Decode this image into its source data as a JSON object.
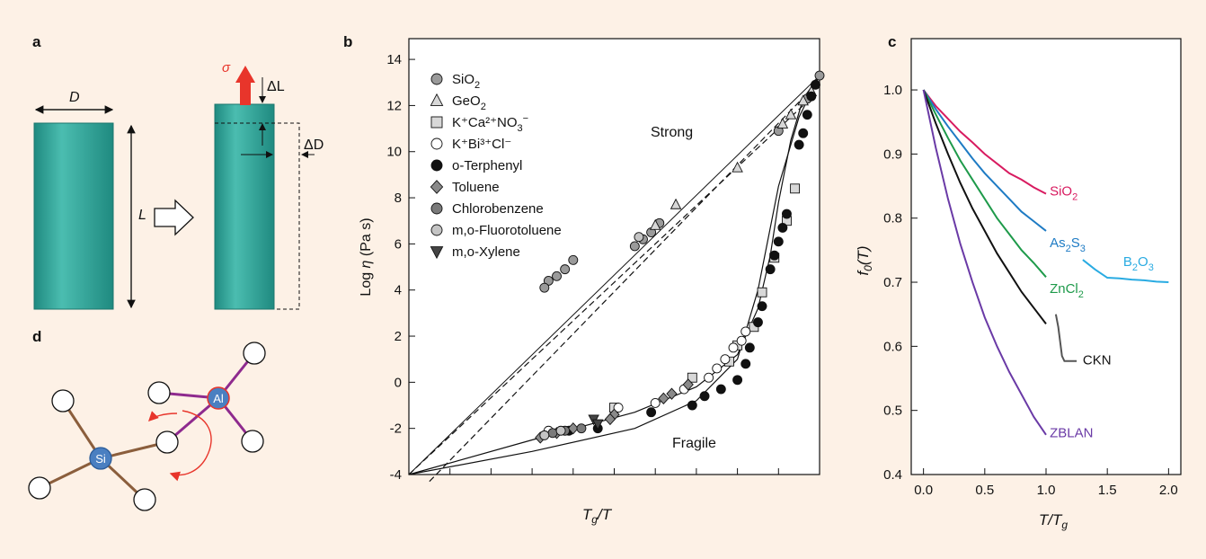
{
  "panels": {
    "a": {
      "label": "a",
      "dim_d": "D",
      "dim_l": "L",
      "stress": "σ",
      "delta_l": "ΔL",
      "delta_d": "ΔD",
      "colors": {
        "rod": "#2a9d93",
        "stress_arrow": "#e8352b"
      }
    },
    "d": {
      "label": "d",
      "atom_si": "Si",
      "atom_al": "Al",
      "colors": {
        "si_bond": "#8b5e3c",
        "al_bond": "#8e2a8e",
        "atom": "#4a7fc1",
        "arrow": "#e8352b"
      }
    }
  },
  "chart_data": [
    {
      "panel": "b",
      "type": "scatter",
      "xlabel_main": "T",
      "xlabel_sub": "g",
      "xlabel_tail": "/T",
      "ylabel_main": "Log ",
      "ylabel_eta": "η",
      "ylabel_tail": " (Pa s)",
      "xlim": [
        0,
        1
      ],
      "ylim": [
        -4,
        14
      ],
      "yticks": [
        "-4",
        "-2",
        "0",
        "2",
        "4",
        "6",
        "8",
        "10",
        "12",
        "14"
      ],
      "annotations": {
        "strong": "Strong",
        "fragile": "Fragile"
      },
      "legend": [
        {
          "marker": "circle",
          "fill": "#9a9a9a",
          "text": "SiO",
          "sub": "2",
          "sup": ""
        },
        {
          "marker": "triangle",
          "fill": "#d8d8d8",
          "text": "GeO",
          "sub": "2",
          "sup": ""
        },
        {
          "marker": "square",
          "fill": "#d8d8d8",
          "text": "K⁺Ca²⁺NO",
          "sub": "3",
          "sup": "−"
        },
        {
          "marker": "circle",
          "fill": "#ffffff",
          "text": "K⁺Bi³⁺Cl⁻",
          "sub": "",
          "sup": ""
        },
        {
          "marker": "circle",
          "fill": "#111111",
          "text": "o-Terphenyl",
          "sub": "",
          "sup": ""
        },
        {
          "marker": "diamond",
          "fill": "#8a8a8a",
          "text": "Toluene",
          "sub": "",
          "sup": ""
        },
        {
          "marker": "circle",
          "fill": "#7a7a7a",
          "text": "Chlorobenzene",
          "sub": "",
          "sup": ""
        },
        {
          "marker": "circle",
          "fill": "#c4c4c4",
          "text": "m,o-Fluorotoluene",
          "sub": "",
          "sup": ""
        },
        {
          "marker": "triangle-down",
          "fill": "#444444",
          "text": "m,o-Xylene",
          "sub": "",
          "sup": ""
        }
      ],
      "lines": {
        "arrhenius": [
          [
            0,
            -4
          ],
          [
            1,
            13.3
          ]
        ],
        "strong_dashed_1": [
          [
            0.05,
            -4.3
          ],
          [
            0.98,
            12.7
          ]
        ],
        "strong_dashed_2": [
          [
            0,
            -4
          ],
          [
            0.96,
            12.0
          ]
        ],
        "fragile": [
          [
            0,
            -4
          ],
          [
            0.3,
            -2.5
          ],
          [
            0.55,
            -1.3
          ],
          [
            0.7,
            -0.2
          ],
          [
            0.8,
            1.2
          ],
          [
            0.85,
            3.2
          ],
          [
            0.88,
            5.5
          ],
          [
            0.9,
            7.8
          ],
          [
            0.93,
            10.5
          ],
          [
            0.96,
            12.3
          ],
          [
            1.0,
            13.3
          ]
        ],
        "fragile_lower": [
          [
            0,
            -4
          ],
          [
            0.3,
            -3.0
          ],
          [
            0.55,
            -2.0
          ],
          [
            0.7,
            -0.8
          ],
          [
            0.8,
            1.0
          ],
          [
            0.85,
            4.0
          ],
          [
            0.9,
            8.5
          ],
          [
            0.95,
            11.5
          ],
          [
            1.0,
            13.3
          ]
        ]
      },
      "points": [
        {
          "x": 1.0,
          "y": 13.3,
          "m": "circle",
          "f": "#9a9a9a"
        },
        {
          "x": 0.97,
          "y": 12.3,
          "m": "circle",
          "f": "#9a9a9a"
        },
        {
          "x": 0.9,
          "y": 10.9,
          "m": "circle",
          "f": "#9a9a9a"
        },
        {
          "x": 0.61,
          "y": 6.9,
          "m": "circle",
          "f": "#9a9a9a"
        },
        {
          "x": 0.59,
          "y": 6.5,
          "m": "circle",
          "f": "#9a9a9a"
        },
        {
          "x": 0.57,
          "y": 6.2,
          "m": "circle",
          "f": "#9a9a9a"
        },
        {
          "x": 0.55,
          "y": 5.9,
          "m": "circle",
          "f": "#9a9a9a"
        },
        {
          "x": 0.56,
          "y": 6.3,
          "m": "circle",
          "f": "#c4c4c4"
        },
        {
          "x": 0.4,
          "y": 5.3,
          "m": "circle",
          "f": "#9a9a9a"
        },
        {
          "x": 0.38,
          "y": 4.9,
          "m": "circle",
          "f": "#9a9a9a"
        },
        {
          "x": 0.36,
          "y": 4.6,
          "m": "circle",
          "f": "#9a9a9a"
        },
        {
          "x": 0.34,
          "y": 4.4,
          "m": "circle",
          "f": "#9a9a9a"
        },
        {
          "x": 0.33,
          "y": 4.1,
          "m": "circle",
          "f": "#9a9a9a"
        },
        {
          "x": 0.98,
          "y": 12.6,
          "m": "triangle",
          "f": "#d8d8d8"
        },
        {
          "x": 0.96,
          "y": 12.2,
          "m": "triangle",
          "f": "#d8d8d8"
        },
        {
          "x": 0.93,
          "y": 11.6,
          "m": "triangle",
          "f": "#d8d8d8"
        },
        {
          "x": 0.91,
          "y": 11.2,
          "m": "triangle",
          "f": "#d8d8d8"
        },
        {
          "x": 0.8,
          "y": 9.3,
          "m": "triangle",
          "f": "#d8d8d8"
        },
        {
          "x": 0.65,
          "y": 7.7,
          "m": "triangle",
          "f": "#d8d8d8"
        },
        {
          "x": 0.6,
          "y": 6.8,
          "m": "triangle",
          "f": "#d8d8d8"
        },
        {
          "x": 0.94,
          "y": 8.4,
          "m": "square",
          "f": "#d8d8d8"
        },
        {
          "x": 0.92,
          "y": 7.0,
          "m": "square",
          "f": "#d8d8d8"
        },
        {
          "x": 0.89,
          "y": 5.4,
          "m": "square",
          "f": "#d8d8d8"
        },
        {
          "x": 0.86,
          "y": 3.9,
          "m": "square",
          "f": "#d8d8d8"
        },
        {
          "x": 0.84,
          "y": 2.4,
          "m": "square",
          "f": "#d8d8d8"
        },
        {
          "x": 0.8,
          "y": 1.6,
          "m": "square",
          "f": "#d8d8d8"
        },
        {
          "x": 0.78,
          "y": 0.9,
          "m": "square",
          "f": "#d8d8d8"
        },
        {
          "x": 0.69,
          "y": 0.2,
          "m": "square",
          "f": "#d8d8d8"
        },
        {
          "x": 0.5,
          "y": -1.1,
          "m": "square",
          "f": "#d8d8d8"
        },
        {
          "x": 0.82,
          "y": 2.2,
          "m": "circle",
          "f": "#ffffff"
        },
        {
          "x": 0.81,
          "y": 1.8,
          "m": "circle",
          "f": "#ffffff"
        },
        {
          "x": 0.79,
          "y": 1.5,
          "m": "circle",
          "f": "#ffffff"
        },
        {
          "x": 0.77,
          "y": 1.0,
          "m": "circle",
          "f": "#ffffff"
        },
        {
          "x": 0.75,
          "y": 0.6,
          "m": "circle",
          "f": "#ffffff"
        },
        {
          "x": 0.73,
          "y": 0.2,
          "m": "circle",
          "f": "#ffffff"
        },
        {
          "x": 0.67,
          "y": -0.3,
          "m": "circle",
          "f": "#ffffff"
        },
        {
          "x": 0.6,
          "y": -0.9,
          "m": "circle",
          "f": "#ffffff"
        },
        {
          "x": 0.51,
          "y": -1.1,
          "m": "circle",
          "f": "#ffffff"
        },
        {
          "x": 0.34,
          "y": -2.1,
          "m": "circle",
          "f": "#ffffff"
        },
        {
          "x": 0.99,
          "y": 12.9,
          "m": "circle",
          "f": "#111111"
        },
        {
          "x": 0.98,
          "y": 12.4,
          "m": "circle",
          "f": "#111111"
        },
        {
          "x": 0.97,
          "y": 11.6,
          "m": "circle",
          "f": "#111111"
        },
        {
          "x": 0.96,
          "y": 10.8,
          "m": "circle",
          "f": "#111111"
        },
        {
          "x": 0.95,
          "y": 10.3,
          "m": "circle",
          "f": "#111111"
        },
        {
          "x": 0.92,
          "y": 7.3,
          "m": "circle",
          "f": "#111111"
        },
        {
          "x": 0.91,
          "y": 6.7,
          "m": "circle",
          "f": "#111111"
        },
        {
          "x": 0.9,
          "y": 6.1,
          "m": "circle",
          "f": "#111111"
        },
        {
          "x": 0.89,
          "y": 5.5,
          "m": "circle",
          "f": "#111111"
        },
        {
          "x": 0.88,
          "y": 4.9,
          "m": "circle",
          "f": "#111111"
        },
        {
          "x": 0.86,
          "y": 3.3,
          "m": "circle",
          "f": "#111111"
        },
        {
          "x": 0.85,
          "y": 2.6,
          "m": "circle",
          "f": "#111111"
        },
        {
          "x": 0.83,
          "y": 1.5,
          "m": "circle",
          "f": "#111111"
        },
        {
          "x": 0.82,
          "y": 0.8,
          "m": "circle",
          "f": "#111111"
        },
        {
          "x": 0.8,
          "y": 0.1,
          "m": "circle",
          "f": "#111111"
        },
        {
          "x": 0.76,
          "y": -0.3,
          "m": "circle",
          "f": "#111111"
        },
        {
          "x": 0.72,
          "y": -0.6,
          "m": "circle",
          "f": "#111111"
        },
        {
          "x": 0.69,
          "y": -1.0,
          "m": "circle",
          "f": "#111111"
        },
        {
          "x": 0.59,
          "y": -1.3,
          "m": "circle",
          "f": "#111111"
        },
        {
          "x": 0.46,
          "y": -2.0,
          "m": "circle",
          "f": "#111111"
        },
        {
          "x": 0.39,
          "y": -2.1,
          "m": "circle",
          "f": "#111111"
        },
        {
          "x": 0.68,
          "y": -0.1,
          "m": "diamond",
          "f": "#8a8a8a"
        },
        {
          "x": 0.64,
          "y": -0.5,
          "m": "diamond",
          "f": "#8a8a8a"
        },
        {
          "x": 0.62,
          "y": -0.7,
          "m": "diamond",
          "f": "#8a8a8a"
        },
        {
          "x": 0.5,
          "y": -1.4,
          "m": "diamond",
          "f": "#8a8a8a"
        },
        {
          "x": 0.49,
          "y": -1.6,
          "m": "diamond",
          "f": "#8a8a8a"
        },
        {
          "x": 0.4,
          "y": -2.0,
          "m": "diamond",
          "f": "#8a8a8a"
        },
        {
          "x": 0.36,
          "y": -2.2,
          "m": "diamond",
          "f": "#8a8a8a"
        },
        {
          "x": 0.32,
          "y": -2.4,
          "m": "diamond",
          "f": "#8a8a8a"
        },
        {
          "x": 0.35,
          "y": -2.2,
          "m": "circle",
          "f": "#7a7a7a"
        },
        {
          "x": 0.38,
          "y": -2.1,
          "m": "circle",
          "f": "#7a7a7a"
        },
        {
          "x": 0.42,
          "y": -2.0,
          "m": "circle",
          "f": "#7a7a7a"
        },
        {
          "x": 0.33,
          "y": -2.3,
          "m": "circle",
          "f": "#c4c4c4"
        },
        {
          "x": 0.37,
          "y": -2.1,
          "m": "circle",
          "f": "#c4c4c4"
        },
        {
          "x": 0.45,
          "y": -1.6,
          "m": "triangle-down",
          "f": "#444444"
        },
        {
          "x": 0.46,
          "y": -1.8,
          "m": "triangle-down",
          "f": "#444444"
        }
      ]
    },
    {
      "panel": "c",
      "type": "line",
      "xlabel_main": "T/T",
      "xlabel_sub": "g",
      "ylabel_main": "f",
      "ylabel_sub": "0",
      "ylabel_tail": "(T)",
      "xlim": [
        -0.1,
        2.1
      ],
      "ylim": [
        0.4,
        1.0
      ],
      "xticks": [
        0,
        0.5,
        1,
        1.5,
        2
      ],
      "xtick_labels": [
        "0.0",
        "0.5",
        "1.0",
        "1.5",
        "2.0"
      ],
      "yticks": [
        0.4,
        0.5,
        0.6,
        0.7,
        0.8,
        0.9,
        1.0
      ],
      "ytick_labels": [
        "0.4",
        "0.5",
        "0.6",
        "0.7",
        "0.8",
        "0.9",
        "1.0"
      ],
      "series": [
        {
          "name": "SiO",
          "name_sub": "2",
          "color": "#d81b60",
          "x": [
            0,
            0.1,
            0.2,
            0.3,
            0.4,
            0.5,
            0.6,
            0.7,
            0.8,
            0.9,
            1.0
          ],
          "y": [
            1.0,
            0.975,
            0.955,
            0.935,
            0.918,
            0.9,
            0.885,
            0.87,
            0.86,
            0.848,
            0.838
          ]
        },
        {
          "name": "As",
          "name_sub": "2",
          "name_mid": "S",
          "name_sub2": "3",
          "color": "#1e7bc4",
          "x": [
            0,
            0.1,
            0.2,
            0.3,
            0.4,
            0.5,
            0.6,
            0.7,
            0.8,
            0.9,
            1.0
          ],
          "y": [
            1.0,
            0.97,
            0.943,
            0.918,
            0.893,
            0.87,
            0.85,
            0.83,
            0.81,
            0.795,
            0.78
          ]
        },
        {
          "name": "B",
          "name_sub": "2",
          "name_mid": "O",
          "name_sub2": "3",
          "color": "#29abe2",
          "x": [
            1.3,
            1.4,
            1.5,
            1.6,
            1.7,
            1.8,
            1.9,
            2.0
          ],
          "y": [
            0.735,
            0.72,
            0.707,
            0.706,
            0.704,
            0.703,
            0.701,
            0.7
          ]
        },
        {
          "name": "ZnCl",
          "name_sub": "2",
          "color": "#1e9a4a",
          "x": [
            0,
            0.1,
            0.2,
            0.3,
            0.4,
            0.5,
            0.6,
            0.7,
            0.8,
            0.9,
            1.0
          ],
          "y": [
            1.0,
            0.962,
            0.925,
            0.89,
            0.86,
            0.83,
            0.8,
            0.775,
            0.75,
            0.73,
            0.708
          ]
        },
        {
          "name": "CKN",
          "color": "#111111",
          "x": [
            0,
            0.1,
            0.2,
            0.3,
            0.4,
            0.5,
            0.6,
            0.7,
            0.8,
            0.9,
            1.0
          ],
          "y": [
            1.0,
            0.948,
            0.9,
            0.855,
            0.815,
            0.78,
            0.745,
            0.715,
            0.685,
            0.66,
            0.635
          ]
        },
        {
          "name": "CKN",
          "color": "#555555",
          "x": [
            1.08,
            1.1,
            1.12,
            1.13,
            1.15,
            1.25
          ],
          "y": [
            0.65,
            0.63,
            0.6,
            0.585,
            0.577,
            0.577
          ]
        },
        {
          "name": "ZBLAN",
          "color": "#6a3aa6",
          "x": [
            0,
            0.1,
            0.2,
            0.3,
            0.4,
            0.5,
            0.6,
            0.7,
            0.8,
            0.9,
            1.0
          ],
          "y": [
            1.0,
            0.91,
            0.83,
            0.76,
            0.7,
            0.645,
            0.6,
            0.56,
            0.525,
            0.49,
            0.462
          ]
        }
      ]
    }
  ]
}
